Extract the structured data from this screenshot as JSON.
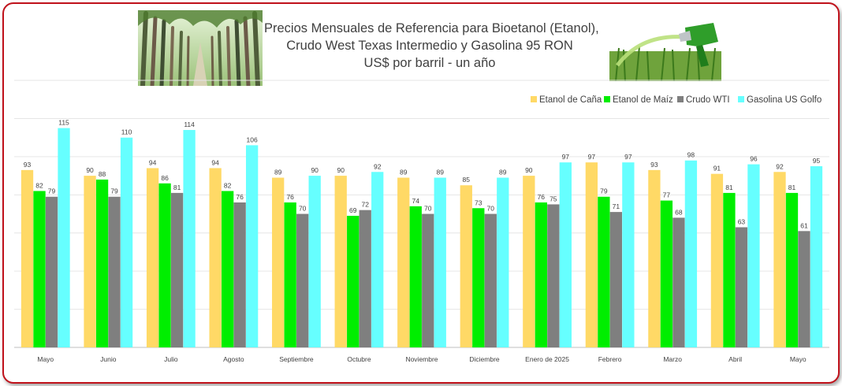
{
  "title_lines": [
    "Precios Mensuales de Referencia para Bioetanol (Etanol),",
    "Crudo West Texas Intermedio y Gasolina 95 RON",
    "US$ por barril - un año"
  ],
  "images": {
    "left": "sugarcane-field-photo",
    "right": "fuel-nozzle-over-grass-photo"
  },
  "colors": {
    "frame_border": "#c0121b",
    "gridline": "#e6e6e6",
    "axis_line": "#bfbfbf",
    "label_text": "#404040"
  },
  "chart_data": {
    "type": "bar",
    "categories": [
      "Mayo",
      "Junio",
      "Julio",
      "Agosto",
      "Septiembre",
      "Octubre",
      "Noviembre",
      "Diciembre",
      "Enero de 2025",
      "Febrero",
      "Marzo",
      "Abril",
      "Mayo"
    ],
    "series": [
      {
        "name": "Etanol de Caña",
        "color": "#ffd966",
        "values": [
          93,
          90,
          94,
          94,
          89,
          90,
          89,
          85,
          90,
          97,
          93,
          91,
          92
        ]
      },
      {
        "name": "Etanol de Maíz",
        "color": "#00ee00",
        "values": [
          82,
          88,
          86,
          82,
          76,
          69,
          74,
          73,
          76,
          79,
          77,
          81,
          81
        ]
      },
      {
        "name": "Crudo WTI",
        "color": "#7f7f7f",
        "values": [
          79,
          79,
          81,
          76,
          70,
          72,
          70,
          70,
          75,
          71,
          68,
          63,
          61
        ]
      },
      {
        "name": "Gasolina US Golfo",
        "color": "#66ffff",
        "values": [
          115,
          110,
          114,
          106,
          90,
          92,
          89,
          89,
          97,
          97,
          98,
          96,
          95
        ]
      }
    ],
    "ylim": [
      0,
      140
    ],
    "grid": true,
    "legend": "top-right",
    "data_labels": true
  }
}
